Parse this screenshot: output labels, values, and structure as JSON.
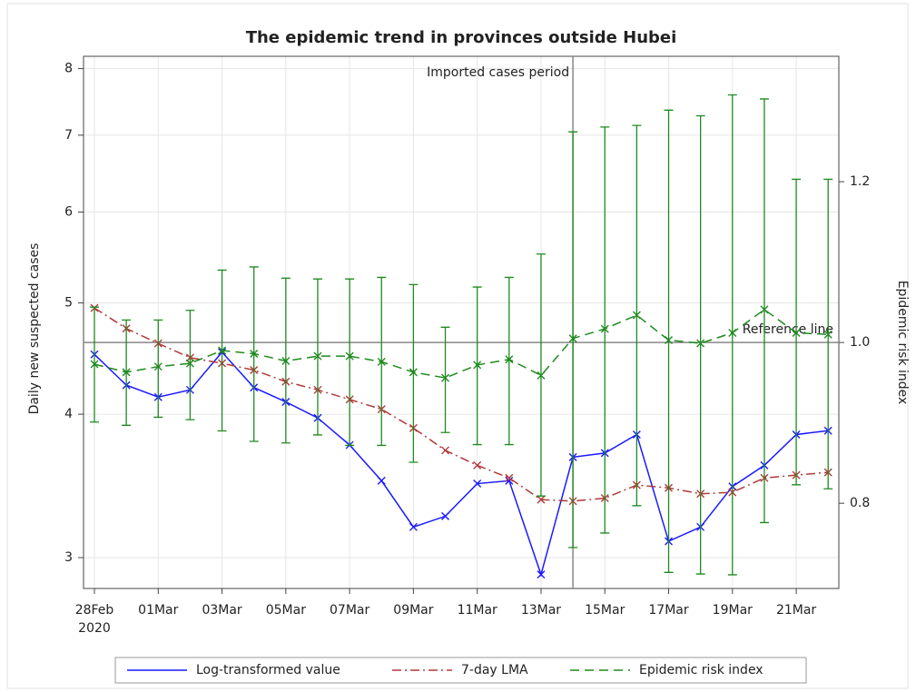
{
  "chart_data": {
    "type": "line",
    "title": "The epidemic trend in provinces outside Hubei",
    "y_label": "Daily new suspected cases",
    "y2_label": "Epidemic risk index",
    "categories": [
      "28Feb",
      null,
      "01Mar",
      null,
      "03Mar",
      null,
      "05Mar",
      null,
      "07Mar",
      null,
      "09Mar",
      null,
      "11Mar",
      null,
      "13Mar",
      null,
      "15Mar",
      null,
      "17Mar",
      null,
      "19Mar",
      null,
      "21Mar",
      null
    ],
    "year_label": "2020",
    "log_y": true,
    "ylim": [
      2.82,
      8.2
    ],
    "yticks": [
      3,
      4,
      5,
      6,
      7,
      8
    ],
    "y2lim": [
      0.694,
      1.356
    ],
    "y2ticks": [
      0.8,
      {
        "value": 1,
        "label": "1.0"
      },
      1.2
    ],
    "grid": true,
    "legend": "bottom",
    "reference_x": {
      "label": "Imported cases period",
      "index": 15,
      "color": "#888888"
    },
    "reference_y2": {
      "label": "Reference line",
      "value": 1,
      "color": "#888888"
    },
    "series": [
      {
        "name": "Log-transformed value",
        "color": "#1a1aff",
        "dash": "solid",
        "values": [
          4.51,
          4.24,
          4.14,
          4.2,
          4.53,
          4.22,
          4.1,
          3.97,
          3.76,
          3.5,
          3.19,
          3.26,
          3.48,
          3.5,
          2.9,
          3.67,
          3.7,
          3.84,
          3.1,
          3.19,
          3.46,
          3.61,
          3.84,
          3.87
        ]
      },
      {
        "name": "7-day LMA",
        "color": "#b03a3a",
        "dash": "dashdot",
        "values": [
          4.95,
          4.75,
          4.61,
          4.48,
          4.43,
          4.37,
          4.27,
          4.2,
          4.12,
          4.04,
          3.89,
          3.72,
          3.61,
          3.52,
          3.37,
          3.36,
          3.38,
          3.47,
          3.45,
          3.41,
          3.42,
          3.52,
          3.54,
          3.56
        ]
      },
      {
        "name": "Epidemic risk index",
        "color": "#1f8a1f",
        "dash": "dash",
        "axis": "y2",
        "values": [
          0.973,
          0.963,
          0.97,
          0.974,
          0.99,
          0.986,
          0.977,
          0.983,
          0.983,
          0.976,
          0.963,
          0.956,
          0.972,
          0.979,
          0.959,
          1.005,
          1.017,
          1.034,
          1.003,
          0.999,
          1.012,
          1.041,
          1.012,
          1.01
        ],
        "lower": [
          0.901,
          0.897,
          0.907,
          0.904,
          0.89,
          0.877,
          0.875,
          0.885,
          0.872,
          0.872,
          0.851,
          0.888,
          0.873,
          0.873,
          0.809,
          0.745,
          0.763,
          0.797,
          0.714,
          0.712,
          0.711,
          0.776,
          0.823,
          0.818
        ],
        "upper": [
          1.044,
          1.028,
          1.028,
          1.04,
          1.09,
          1.094,
          1.08,
          1.079,
          1.079,
          1.081,
          1.072,
          1.019,
          1.069,
          1.081,
          1.11,
          1.262,
          1.268,
          1.27,
          1.289,
          1.282,
          1.308,
          1.303,
          1.203,
          1.203
        ]
      }
    ]
  }
}
